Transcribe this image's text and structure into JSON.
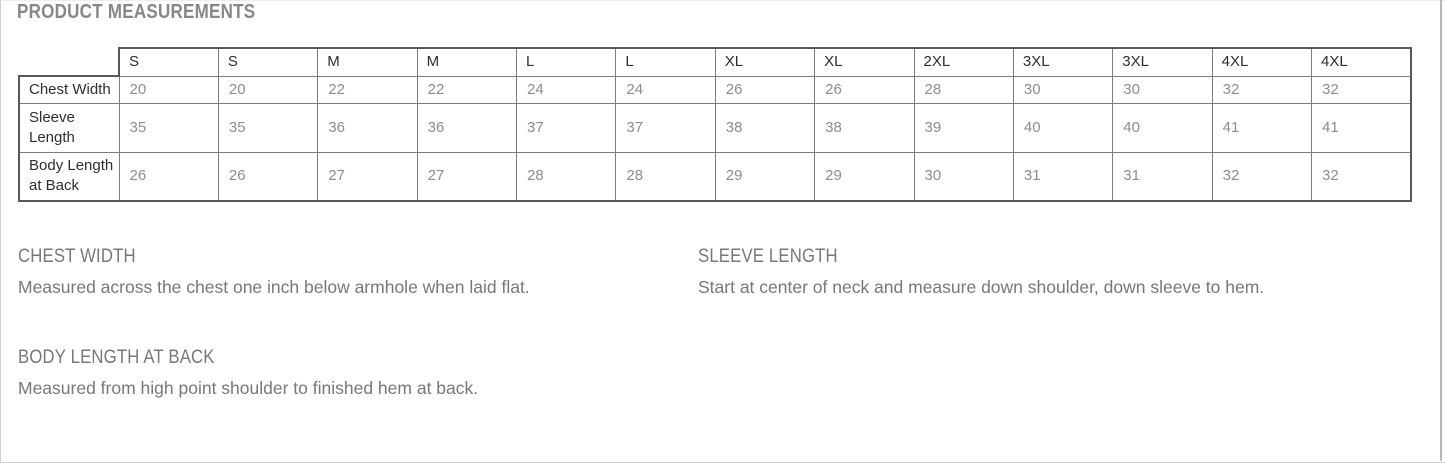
{
  "title": "PRODUCT MEASUREMENTS",
  "table": {
    "sizes": [
      "S",
      "S",
      "M",
      "M",
      "L",
      "L",
      "XL",
      "XL",
      "2XL",
      "3XL",
      "3XL",
      "4XL",
      "4XL"
    ],
    "rows": [
      {
        "label": "Chest Width",
        "values": [
          20,
          20,
          22,
          22,
          24,
          24,
          26,
          26,
          28,
          30,
          30,
          32,
          32
        ]
      },
      {
        "label": "Sleeve Length",
        "values": [
          35,
          35,
          36,
          36,
          37,
          37,
          38,
          38,
          39,
          40,
          40,
          41,
          41
        ]
      },
      {
        "label": "Body Length at Back",
        "values": [
          26,
          26,
          27,
          27,
          28,
          28,
          29,
          29,
          30,
          31,
          31,
          32,
          32
        ]
      }
    ]
  },
  "definitions": [
    {
      "heading": "CHEST WIDTH",
      "text": "Measured across the chest one inch below armhole when laid flat."
    },
    {
      "heading": "SLEEVE LENGTH",
      "text": "Start at center of neck and measure down shoulder, down sleeve to hem."
    },
    {
      "heading": "BODY LENGTH AT BACK",
      "text": "Measured from high point shoulder to finished hem at back."
    }
  ],
  "colors": {
    "section_text_gray": "#77787b",
    "title_gray": "#85878a",
    "table_value_gray": "#8b8d90",
    "table_label_dark": "#2e2f31",
    "table_outer_border": "#57585a",
    "table_inner_border": "#7a7c7f"
  }
}
